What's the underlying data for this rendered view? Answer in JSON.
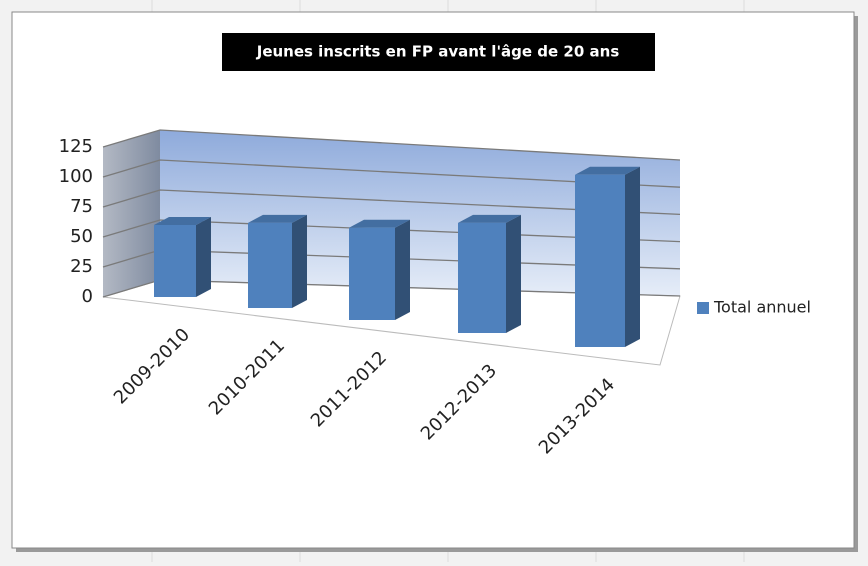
{
  "chart_data": {
    "type": "bar3d",
    "title": "Jeunes inscrits en FP avant  l'âge de 20 ans",
    "categories": [
      "2009-2010",
      "2010-2011",
      "2011-2012",
      "2012-2013",
      "2013-2014"
    ],
    "series": [
      {
        "name": "Total annuel",
        "color": "#4f81bd",
        "values": [
          60,
          65,
          65,
          72,
          105
        ]
      }
    ],
    "ylim": [
      0,
      125
    ],
    "yticks": [
      0,
      25,
      50,
      75,
      100,
      125
    ],
    "grid": true,
    "legend": "right"
  }
}
